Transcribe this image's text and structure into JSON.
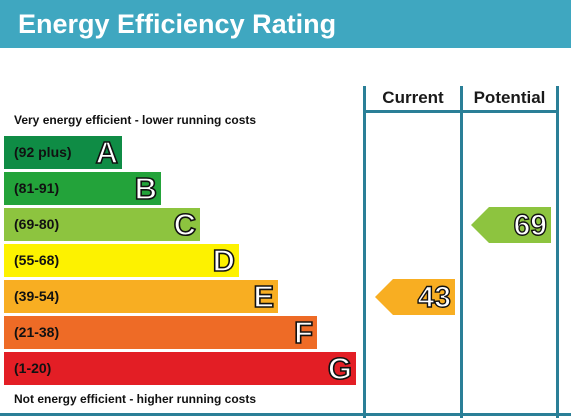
{
  "title": "Energy Efficiency Rating",
  "columns": {
    "current": "Current",
    "potential": "Potential"
  },
  "captions": {
    "top": "Very energy efficient - lower running costs",
    "bottom": "Not energy efficient - higher running costs"
  },
  "chart_data": {
    "type": "bar",
    "title": "Energy Efficiency Rating",
    "bands": [
      {
        "letter": "A",
        "range": "(92 plus)",
        "color": "#0f8c45"
      },
      {
        "letter": "B",
        "range": "(81-91)",
        "color": "#23a33a"
      },
      {
        "letter": "C",
        "range": "(69-80)",
        "color": "#8dc43f"
      },
      {
        "letter": "D",
        "range": "(55-68)",
        "color": "#fdf200"
      },
      {
        "letter": "E",
        "range": "(39-54)",
        "color": "#f8ae22"
      },
      {
        "letter": "F",
        "range": "(21-38)",
        "color": "#ee6b26"
      },
      {
        "letter": "G",
        "range": "(1-20)",
        "color": "#e31e25"
      }
    ],
    "current": {
      "value": "43",
      "band": "E",
      "color": "#f8ae22"
    },
    "potential": {
      "value": "69",
      "band": "C",
      "color": "#8dc43f"
    }
  }
}
